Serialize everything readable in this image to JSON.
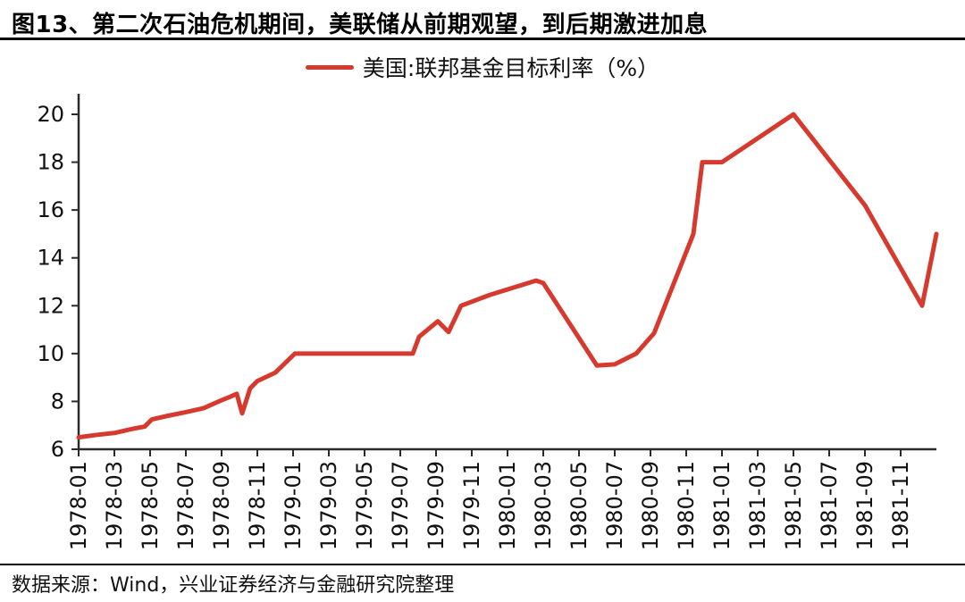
{
  "header": {
    "title": "图13、第二次石油危机期间，美联储从前期观望，到后期激进加息"
  },
  "footer": {
    "source": "数据来源：Wind，兴业证券经济与金融研究院整理"
  },
  "colors": {
    "line": "#d6392e",
    "axis": "#2b2b2b",
    "text": "#111111"
  },
  "chart_data": {
    "type": "line",
    "title": "图13、第二次石油危机期间，美联储从前期观望，到后期激进加息",
    "legend_position": "top-center",
    "grid": false,
    "xlabel": "",
    "ylabel": "",
    "x_axis": {
      "unit": "months_since_1978-01",
      "range_months": [
        0,
        48
      ],
      "tick_step_months": 2,
      "tick_labels": [
        "1978-01",
        "1978-03",
        "1978-05",
        "1978-07",
        "1978-09",
        "1978-11",
        "1979-01",
        "1979-03",
        "1979-05",
        "1979-07",
        "1979-09",
        "1979-11",
        "1980-01",
        "1980-03",
        "1980-05",
        "1980-07",
        "1980-09",
        "1980-11",
        "1981-01",
        "1981-03",
        "1981-05",
        "1981-07",
        "1981-09",
        "1981-11"
      ]
    },
    "y_axis": {
      "ticks": [
        6,
        8,
        10,
        12,
        14,
        16,
        18,
        20
      ],
      "range": [
        6,
        20.9
      ]
    },
    "series": [
      {
        "name": "美国:联邦基金目标利率（%）",
        "color": "#d6392e",
        "points_format": "[months_since_1978-01, percent]",
        "points": [
          [
            0,
            6.5
          ],
          [
            1,
            6.6
          ],
          [
            2,
            6.68
          ],
          [
            3,
            6.85
          ],
          [
            3.7,
            6.95
          ],
          [
            4.1,
            7.25
          ],
          [
            5,
            7.4
          ],
          [
            6,
            7.55
          ],
          [
            7,
            7.72
          ],
          [
            8,
            8.05
          ],
          [
            8.5,
            8.2
          ],
          [
            8.85,
            8.32
          ],
          [
            9.15,
            7.5
          ],
          [
            9.6,
            8.55
          ],
          [
            10,
            8.85
          ],
          [
            11,
            9.2
          ],
          [
            12.1,
            10.0
          ],
          [
            18.7,
            10.0
          ],
          [
            19.05,
            10.7
          ],
          [
            20.1,
            11.35
          ],
          [
            20.7,
            10.9
          ],
          [
            21.4,
            12.0
          ],
          [
            23,
            12.45
          ],
          [
            25.6,
            13.05
          ],
          [
            26,
            12.95
          ],
          [
            29,
            9.5
          ],
          [
            30,
            9.55
          ],
          [
            31.2,
            10.0
          ],
          [
            32.2,
            10.85
          ],
          [
            34.4,
            15.0
          ],
          [
            34.9,
            18.0
          ],
          [
            36,
            18.0
          ],
          [
            40,
            20.0
          ],
          [
            44,
            16.2
          ],
          [
            47.2,
            12.0
          ],
          [
            48,
            15.0
          ]
        ]
      }
    ]
  }
}
